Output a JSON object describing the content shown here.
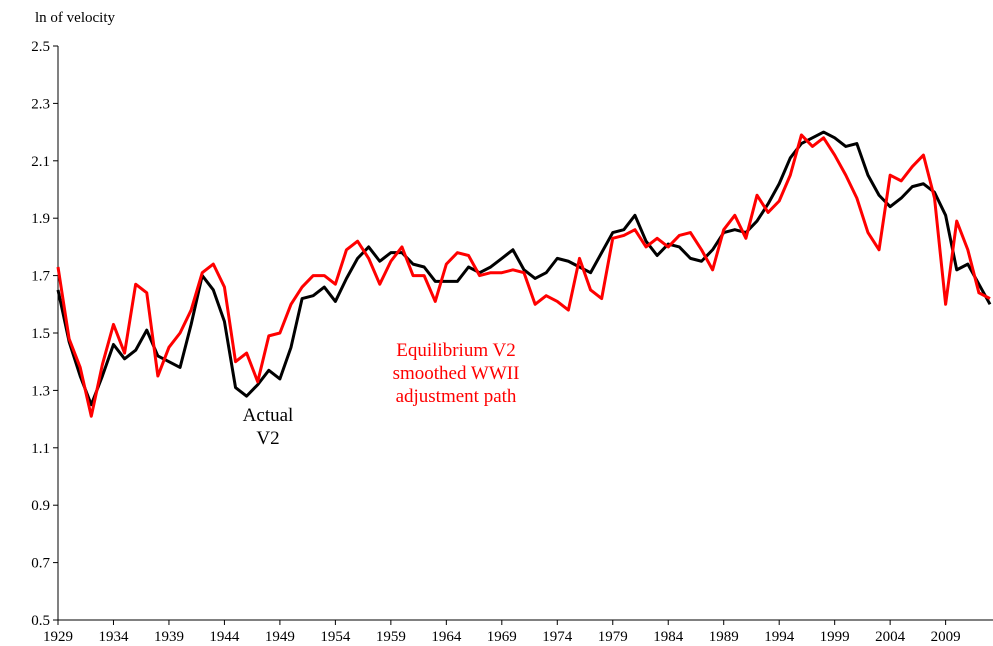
{
  "chart_data": {
    "type": "line",
    "y_label": "ln of velocity",
    "x": [
      1929,
      1930,
      1931,
      1932,
      1933,
      1934,
      1935,
      1936,
      1937,
      1938,
      1939,
      1940,
      1941,
      1942,
      1943,
      1944,
      1945,
      1946,
      1947,
      1948,
      1949,
      1950,
      1951,
      1952,
      1953,
      1954,
      1955,
      1956,
      1957,
      1958,
      1959,
      1960,
      1961,
      1962,
      1963,
      1964,
      1965,
      1966,
      1967,
      1968,
      1969,
      1970,
      1971,
      1972,
      1973,
      1974,
      1975,
      1976,
      1977,
      1978,
      1979,
      1980,
      1981,
      1982,
      1983,
      1984,
      1985,
      1986,
      1987,
      1988,
      1989,
      1990,
      1991,
      1992,
      1993,
      1994,
      1995,
      1996,
      1997,
      1998,
      1999,
      2000,
      2001,
      2002,
      2003,
      2004,
      2005,
      2006,
      2007,
      2008,
      2009,
      2010,
      2011,
      2012,
      2013
    ],
    "series": [
      {
        "name": "Actual V2",
        "color": "#000000",
        "values": [
          1.65,
          1.47,
          1.35,
          1.25,
          1.35,
          1.46,
          1.41,
          1.44,
          1.51,
          1.42,
          1.4,
          1.38,
          1.53,
          1.7,
          1.65,
          1.54,
          1.31,
          1.28,
          1.32,
          1.37,
          1.34,
          1.45,
          1.62,
          1.63,
          1.66,
          1.61,
          1.69,
          1.76,
          1.8,
          1.75,
          1.78,
          1.78,
          1.74,
          1.73,
          1.68,
          1.68,
          1.68,
          1.73,
          1.71,
          1.73,
          1.76,
          1.79,
          1.72,
          1.69,
          1.71,
          1.76,
          1.75,
          1.73,
          1.71,
          1.78,
          1.85,
          1.86,
          1.91,
          1.82,
          1.77,
          1.81,
          1.8,
          1.76,
          1.75,
          1.79,
          1.85,
          1.86,
          1.85,
          1.89,
          1.95,
          2.02,
          2.11,
          2.16,
          2.18,
          2.2,
          2.18,
          2.15,
          2.16,
          2.05,
          1.98,
          1.94,
          1.97,
          2.01,
          2.02,
          1.99,
          1.91,
          1.72,
          1.74,
          1.67,
          1.6
        ]
      },
      {
        "name": "Equilibrium V2 smoothed WWII adjustment path",
        "color": "#ff0000",
        "values": [
          1.73,
          1.48,
          1.38,
          1.21,
          1.39,
          1.53,
          1.43,
          1.67,
          1.64,
          1.35,
          1.45,
          1.5,
          1.58,
          1.71,
          1.74,
          1.66,
          1.4,
          1.43,
          1.33,
          1.49,
          1.5,
          1.6,
          1.66,
          1.7,
          1.7,
          1.67,
          1.79,
          1.82,
          1.76,
          1.67,
          1.75,
          1.8,
          1.7,
          1.7,
          1.61,
          1.74,
          1.78,
          1.77,
          1.7,
          1.71,
          1.71,
          1.72,
          1.71,
          1.6,
          1.63,
          1.61,
          1.58,
          1.76,
          1.65,
          1.62,
          1.83,
          1.84,
          1.86,
          1.8,
          1.83,
          1.8,
          1.84,
          1.85,
          1.79,
          1.72,
          1.86,
          1.91,
          1.83,
          1.98,
          1.92,
          1.96,
          2.05,
          2.19,
          2.15,
          2.18,
          2.12,
          2.05,
          1.97,
          1.85,
          1.79,
          2.05,
          2.03,
          2.08,
          2.12,
          1.97,
          1.6,
          1.89,
          1.79,
          1.64,
          1.62
        ]
      }
    ],
    "annotations": [
      [
        "Actual",
        "V2"
      ],
      [
        "Equilibrium V2",
        "smoothed WWII",
        "adjustment path"
      ]
    ],
    "xlim": [
      1929,
      2013
    ],
    "xticks": [
      1929,
      1934,
      1939,
      1944,
      1949,
      1954,
      1959,
      1964,
      1969,
      1974,
      1979,
      1984,
      1989,
      1994,
      1999,
      2004,
      2009
    ],
    "ylim": [
      0.5,
      2.5
    ],
    "yticks": [
      0.5,
      0.7,
      0.9,
      1.1,
      1.3,
      1.5,
      1.7,
      1.9,
      2.1,
      2.3,
      2.5
    ],
    "grid": false
  }
}
